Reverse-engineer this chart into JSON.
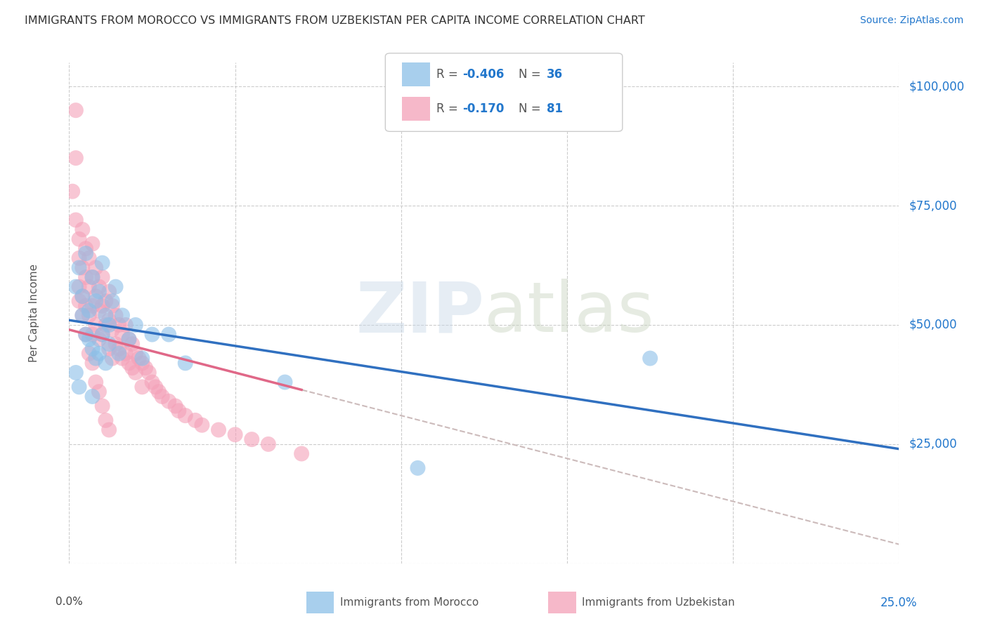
{
  "title": "IMMIGRANTS FROM MOROCCO VS IMMIGRANTS FROM UZBEKISTAN PER CAPITA INCOME CORRELATION CHART",
  "source": "Source: ZipAtlas.com",
  "ylabel": "Per Capita Income",
  "legend_series": [
    {
      "name": "Immigrants from Morocco",
      "color": "#8bbfe8"
    },
    {
      "name": "Immigrants from Uzbekistan",
      "color": "#f4a0b8"
    }
  ],
  "watermark_zip": "ZIP",
  "watermark_atlas": "atlas",
  "background_color": "#ffffff",
  "plot_bg": "#ffffff",
  "grid_color": "#cccccc",
  "morocco_color": "#8bbfe8",
  "uzbekistan_color": "#f4a0b8",
  "morocco_line_color": "#3070c0",
  "uzbekistan_line_color": "#e06888",
  "dashed_line_color": "#ccbbbb",
  "xlim": [
    0.0,
    0.25
  ],
  "ylim": [
    0,
    105000
  ],
  "yticks": [
    0,
    25000,
    50000,
    75000,
    100000
  ],
  "ytick_labels": [
    "",
    "$25,000",
    "$50,000",
    "$75,000",
    "$100,000"
  ],
  "xticks": [
    0.0,
    0.05,
    0.1,
    0.15,
    0.2,
    0.25
  ],
  "morocco_r": -0.406,
  "morocco_n": 36,
  "uzbekistan_r": -0.17,
  "uzbekistan_n": 81,
  "morocco_line_x0": 0.0,
  "morocco_line_y0": 51000,
  "morocco_line_x1": 0.25,
  "morocco_line_y1": 24000,
  "uzbekistan_line_x0": 0.0,
  "uzbekistan_line_y0": 49000,
  "uzbekistan_line_x1": 0.25,
  "uzbekistan_line_y1": 4000,
  "morocco_scatter_x": [
    0.002,
    0.003,
    0.004,
    0.004,
    0.005,
    0.005,
    0.006,
    0.006,
    0.007,
    0.007,
    0.008,
    0.008,
    0.009,
    0.009,
    0.01,
    0.01,
    0.011,
    0.011,
    0.012,
    0.012,
    0.013,
    0.014,
    0.015,
    0.016,
    0.018,
    0.02,
    0.022,
    0.025,
    0.03,
    0.035,
    0.065,
    0.105,
    0.175,
    0.002,
    0.003,
    0.007
  ],
  "morocco_scatter_y": [
    58000,
    62000,
    56000,
    52000,
    65000,
    48000,
    53000,
    47000,
    60000,
    45000,
    55000,
    43000,
    57000,
    44000,
    63000,
    48000,
    52000,
    42000,
    50000,
    46000,
    55000,
    58000,
    44000,
    52000,
    47000,
    50000,
    43000,
    48000,
    48000,
    42000,
    38000,
    20000,
    43000,
    40000,
    37000,
    35000
  ],
  "uzbekistan_scatter_x": [
    0.001,
    0.002,
    0.002,
    0.003,
    0.003,
    0.003,
    0.004,
    0.004,
    0.004,
    0.005,
    0.005,
    0.005,
    0.006,
    0.006,
    0.006,
    0.007,
    0.007,
    0.007,
    0.007,
    0.008,
    0.008,
    0.008,
    0.009,
    0.009,
    0.009,
    0.01,
    0.01,
    0.01,
    0.011,
    0.011,
    0.012,
    0.012,
    0.012,
    0.013,
    0.013,
    0.013,
    0.014,
    0.014,
    0.015,
    0.015,
    0.016,
    0.016,
    0.017,
    0.017,
    0.018,
    0.018,
    0.019,
    0.019,
    0.02,
    0.02,
    0.021,
    0.022,
    0.022,
    0.023,
    0.024,
    0.025,
    0.026,
    0.027,
    0.028,
    0.03,
    0.032,
    0.033,
    0.035,
    0.038,
    0.04,
    0.045,
    0.05,
    0.055,
    0.06,
    0.07,
    0.002,
    0.003,
    0.004,
    0.005,
    0.006,
    0.007,
    0.008,
    0.009,
    0.01,
    0.011,
    0.012
  ],
  "uzbekistan_scatter_y": [
    78000,
    72000,
    85000,
    68000,
    64000,
    58000,
    70000,
    62000,
    56000,
    66000,
    60000,
    54000,
    64000,
    58000,
    52000,
    67000,
    60000,
    54000,
    48000,
    62000,
    56000,
    50000,
    58000,
    53000,
    47000,
    60000,
    54000,
    48000,
    55000,
    50000,
    57000,
    51000,
    45000,
    54000,
    49000,
    43000,
    52000,
    46000,
    50000,
    45000,
    48000,
    43000,
    50000,
    44000,
    47000,
    42000,
    46000,
    41000,
    44000,
    40000,
    43000,
    42000,
    37000,
    41000,
    40000,
    38000,
    37000,
    36000,
    35000,
    34000,
    33000,
    32000,
    31000,
    30000,
    29000,
    28000,
    27000,
    26000,
    25000,
    23000,
    95000,
    55000,
    52000,
    48000,
    44000,
    42000,
    38000,
    36000,
    33000,
    30000,
    28000
  ]
}
